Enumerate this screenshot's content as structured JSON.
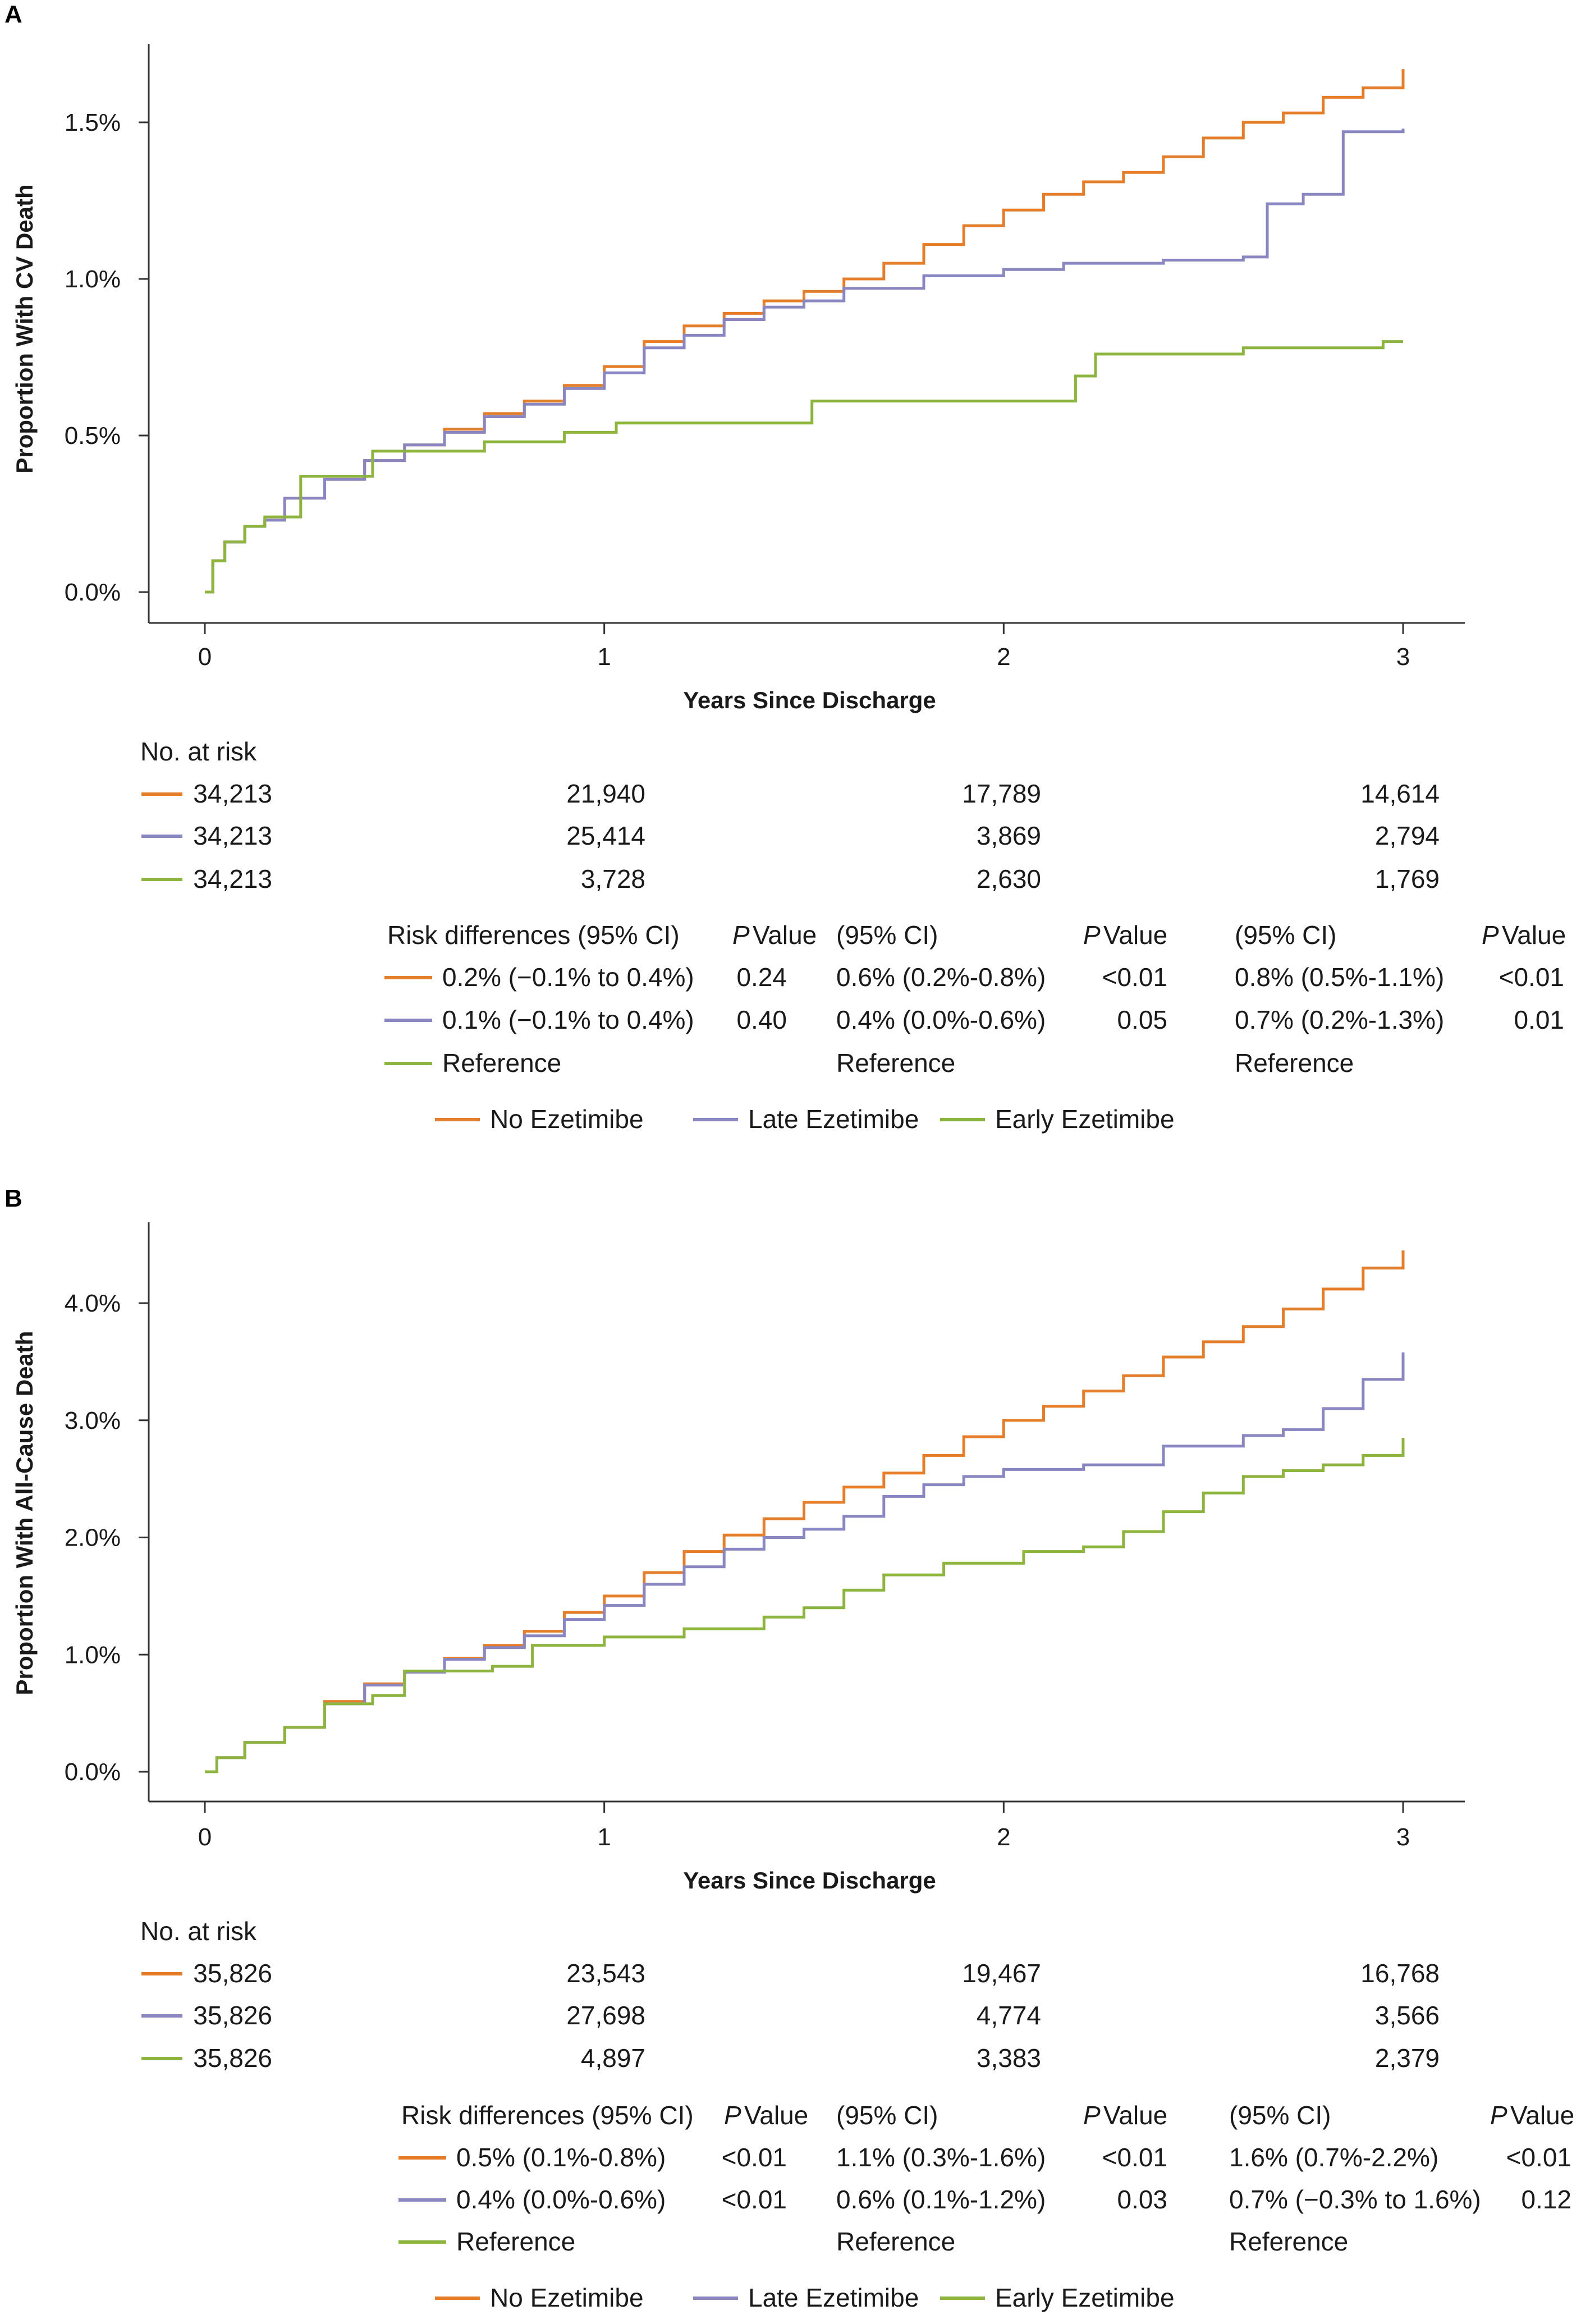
{
  "colors": {
    "no": "#e57e2a",
    "late": "#8a86c2",
    "early": "#8cb43f",
    "axis": "#333333"
  },
  "legend": [
    "No Ezetimibe",
    "Late Ezetimibe",
    "Early Ezetimibe"
  ],
  "panels": [
    {
      "letter": "A",
      "at_risk_title": "No. at risk",
      "at_risk": [
        [
          "34,213",
          "21,940",
          "17,789",
          "14,614"
        ],
        [
          "34,213",
          "25,414",
          "3,869",
          "2,794"
        ],
        [
          "34,213",
          "3,728",
          "2,630",
          "1,769"
        ]
      ],
      "risk_header": [
        "Risk differences (95% CI)",
        "P",
        "Value",
        "(95% CI)",
        "P",
        "Value",
        "(95% CI)",
        "P",
        "Value"
      ],
      "risk_rows": [
        [
          "0.2% (−0.1% to 0.4%)",
          "0.24",
          "0.6% (0.2%-0.8%)",
          "<0.01",
          "0.8% (0.5%-1.1%)",
          "<0.01"
        ],
        [
          "0.1% (−0.1% to 0.4%)",
          "0.40",
          "0.4% (0.0%-0.6%)",
          "0.05",
          "0.7% (0.2%-1.3%)",
          "0.01"
        ],
        [
          "Reference",
          "",
          "Reference",
          "",
          "Reference",
          ""
        ]
      ]
    },
    {
      "letter": "B",
      "at_risk_title": "No. at risk",
      "at_risk": [
        [
          "35,826",
          "23,543",
          "19,467",
          "16,768"
        ],
        [
          "35,826",
          "27,698",
          "4,774",
          "3,566"
        ],
        [
          "35,826",
          "4,897",
          "3,383",
          "2,379"
        ]
      ],
      "risk_header": [
        "Risk differences (95% CI)",
        "P",
        "Value",
        "(95% CI)",
        "P",
        "Value",
        "(95% CI)",
        "P",
        "Value"
      ],
      "risk_rows": [
        [
          "0.5% (0.1%-0.8%)",
          "<0.01",
          "1.1% (0.3%-1.6%)",
          "<0.01",
          "1.6% (0.7%-2.2%)",
          "<0.01"
        ],
        [
          "0.4% (0.0%-0.6%)",
          "<0.01",
          "0.6% (0.1%-1.2%)",
          "0.03",
          "0.7% (−0.3% to 1.6%)",
          "0.12"
        ],
        [
          "Reference",
          "",
          "Reference",
          "",
          "Reference",
          ""
        ]
      ]
    }
  ],
  "chart_data": [
    {
      "type": "line",
      "title": "A",
      "xlabel": "Years Since Discharge",
      "ylabel": "Proportion With CV Death",
      "xlim": [
        0,
        3
      ],
      "ylim": [
        0,
        1.75
      ],
      "xticks": [
        "0",
        "1",
        "2",
        "3"
      ],
      "yticks": [
        0,
        0.5,
        1.0,
        1.5
      ],
      "ytick_labels": [
        "0.0%",
        "0.5%",
        "1.0%",
        "1.5%"
      ],
      "series": [
        {
          "name": "No Ezetimibe",
          "color": "#e57e2a",
          "x": [
            0,
            0.02,
            0.05,
            0.1,
            0.15,
            0.2,
            0.3,
            0.4,
            0.5,
            0.6,
            0.7,
            0.8,
            0.9,
            1.0,
            1.1,
            1.2,
            1.3,
            1.4,
            1.5,
            1.6,
            1.7,
            1.8,
            1.9,
            2.0,
            2.1,
            2.2,
            2.3,
            2.4,
            2.5,
            2.6,
            2.7,
            2.8,
            2.9,
            3.0
          ],
          "y": [
            0,
            0.1,
            0.16,
            0.21,
            0.23,
            0.3,
            0.36,
            0.42,
            0.47,
            0.52,
            0.57,
            0.61,
            0.66,
            0.72,
            0.8,
            0.85,
            0.89,
            0.93,
            0.96,
            1.0,
            1.05,
            1.11,
            1.17,
            1.22,
            1.27,
            1.31,
            1.34,
            1.39,
            1.45,
            1.5,
            1.53,
            1.58,
            1.61,
            1.67
          ]
        },
        {
          "name": "Late Ezetimibe",
          "color": "#8a86c2",
          "x": [
            0,
            0.02,
            0.05,
            0.1,
            0.15,
            0.2,
            0.3,
            0.4,
            0.5,
            0.6,
            0.7,
            0.8,
            0.9,
            1.0,
            1.1,
            1.2,
            1.3,
            1.4,
            1.5,
            1.6,
            1.8,
            2.0,
            2.15,
            2.4,
            2.6,
            2.66,
            2.75,
            2.85,
            3.0
          ],
          "y": [
            0,
            0.1,
            0.16,
            0.21,
            0.23,
            0.3,
            0.36,
            0.42,
            0.47,
            0.51,
            0.56,
            0.6,
            0.65,
            0.7,
            0.78,
            0.82,
            0.87,
            0.91,
            0.93,
            0.97,
            1.01,
            1.03,
            1.05,
            1.06,
            1.07,
            1.24,
            1.27,
            1.47,
            1.48
          ]
        },
        {
          "name": "Early Ezetimibe",
          "color": "#8cb43f",
          "x": [
            0,
            0.02,
            0.05,
            0.1,
            0.15,
            0.24,
            0.42,
            0.7,
            0.9,
            1.03,
            1.52,
            2.18,
            2.23,
            2.6,
            2.95,
            3.0
          ],
          "y": [
            0,
            0.1,
            0.16,
            0.21,
            0.24,
            0.37,
            0.45,
            0.48,
            0.51,
            0.54,
            0.61,
            0.69,
            0.76,
            0.78,
            0.8,
            0.8
          ]
        }
      ]
    },
    {
      "type": "line",
      "title": "B",
      "xlabel": "Years Since Discharge",
      "ylabel": "Proportion With All-Cause Death",
      "xlim": [
        0,
        3
      ],
      "ylim": [
        0,
        4.7
      ],
      "xticks": [
        "0",
        "1",
        "2",
        "3"
      ],
      "yticks": [
        0,
        1.0,
        2.0,
        3.0,
        4.0
      ],
      "ytick_labels": [
        "0.0%",
        "1.0%",
        "2.0%",
        "3.0%",
        "4.0%"
      ],
      "series": [
        {
          "name": "No Ezetimibe",
          "color": "#e57e2a",
          "x": [
            0,
            0.03,
            0.1,
            0.2,
            0.3,
            0.4,
            0.5,
            0.6,
            0.7,
            0.8,
            0.9,
            1.0,
            1.1,
            1.2,
            1.3,
            1.4,
            1.5,
            1.6,
            1.7,
            1.8,
            1.9,
            2.0,
            2.1,
            2.2,
            2.3,
            2.4,
            2.5,
            2.6,
            2.7,
            2.8,
            2.9,
            3.0
          ],
          "y": [
            0,
            0.12,
            0.25,
            0.38,
            0.6,
            0.75,
            0.86,
            0.97,
            1.08,
            1.2,
            1.36,
            1.5,
            1.7,
            1.88,
            2.02,
            2.16,
            2.3,
            2.43,
            2.55,
            2.7,
            2.86,
            3.0,
            3.12,
            3.25,
            3.38,
            3.54,
            3.67,
            3.8,
            3.95,
            4.12,
            4.3,
            4.45
          ]
        },
        {
          "name": "Late Ezetimibe",
          "color": "#8a86c2",
          "x": [
            0,
            0.03,
            0.1,
            0.2,
            0.3,
            0.4,
            0.5,
            0.6,
            0.7,
            0.8,
            0.9,
            1.0,
            1.1,
            1.2,
            1.3,
            1.4,
            1.5,
            1.6,
            1.7,
            1.8,
            1.9,
            2.0,
            2.2,
            2.4,
            2.6,
            2.7,
            2.8,
            2.9,
            3.0
          ],
          "y": [
            0,
            0.12,
            0.25,
            0.38,
            0.58,
            0.74,
            0.85,
            0.96,
            1.06,
            1.16,
            1.3,
            1.42,
            1.6,
            1.75,
            1.9,
            2.0,
            2.07,
            2.18,
            2.35,
            2.45,
            2.52,
            2.58,
            2.62,
            2.78,
            2.87,
            2.92,
            3.1,
            3.35,
            3.58
          ]
        },
        {
          "name": "Early Ezetimibe",
          "color": "#8cb43f",
          "x": [
            0,
            0.03,
            0.1,
            0.2,
            0.3,
            0.42,
            0.5,
            0.72,
            0.82,
            1.0,
            1.2,
            1.4,
            1.5,
            1.6,
            1.7,
            1.85,
            2.05,
            2.2,
            2.3,
            2.4,
            2.5,
            2.6,
            2.7,
            2.8,
            2.9,
            3.0
          ],
          "y": [
            0,
            0.12,
            0.25,
            0.38,
            0.58,
            0.65,
            0.86,
            0.9,
            1.08,
            1.15,
            1.22,
            1.32,
            1.4,
            1.55,
            1.68,
            1.78,
            1.88,
            1.92,
            2.05,
            2.22,
            2.38,
            2.52,
            2.57,
            2.62,
            2.7,
            2.85
          ]
        }
      ]
    }
  ]
}
